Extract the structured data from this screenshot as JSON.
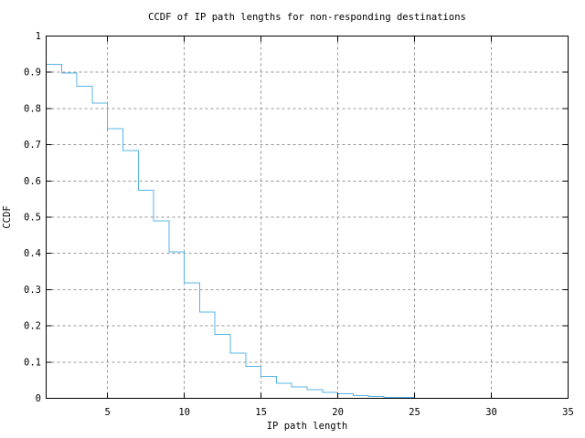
{
  "page": {
    "background": "#ffffff"
  },
  "chart_data": {
    "type": "line",
    "line_style": "steps",
    "title": "CCDF of IP path lengths for non-responding destinations",
    "xlabel": "IP path length",
    "ylabel": "CCDF",
    "xlim": [
      1,
      35
    ],
    "ylim": [
      0,
      1
    ],
    "grid": true,
    "legend": "none",
    "line_color": "#56b4e9",
    "grid_color": "#969696",
    "axis_color": "#000000",
    "xticks": [
      {
        "v": 5,
        "label": "5"
      },
      {
        "v": 10,
        "label": "10"
      },
      {
        "v": 15,
        "label": "15"
      },
      {
        "v": 20,
        "label": "20"
      },
      {
        "v": 25,
        "label": "25"
      },
      {
        "v": 30,
        "label": "30"
      },
      {
        "v": 35,
        "label": "35"
      }
    ],
    "yticks": [
      {
        "v": 0,
        "label": "0"
      },
      {
        "v": 0.1,
        "label": "0.1"
      },
      {
        "v": 0.2,
        "label": "0.2"
      },
      {
        "v": 0.3,
        "label": "0.3"
      },
      {
        "v": 0.4,
        "label": "0.4"
      },
      {
        "v": 0.5,
        "label": "0.5"
      },
      {
        "v": 0.6,
        "label": "0.6"
      },
      {
        "v": 0.7,
        "label": "0.7"
      },
      {
        "v": 0.8,
        "label": "0.8"
      },
      {
        "v": 0.9,
        "label": "0.9"
      },
      {
        "v": 1,
        "label": "1"
      }
    ],
    "points": [
      [
        1,
        0.922
      ],
      [
        2,
        0.898
      ],
      [
        3,
        0.862
      ],
      [
        4,
        0.815
      ],
      [
        5,
        0.744
      ],
      [
        6,
        0.684
      ],
      [
        7,
        0.574
      ],
      [
        8,
        0.49
      ],
      [
        9,
        0.404
      ],
      [
        10,
        0.319
      ],
      [
        11,
        0.238
      ],
      [
        12,
        0.176
      ],
      [
        13,
        0.125
      ],
      [
        14,
        0.088
      ],
      [
        15,
        0.061
      ],
      [
        16,
        0.042
      ],
      [
        17,
        0.032
      ],
      [
        18,
        0.024
      ],
      [
        19,
        0.017
      ],
      [
        20,
        0.012
      ],
      [
        21,
        0.008
      ],
      [
        22,
        0.005
      ],
      [
        23,
        0.003
      ],
      [
        24,
        0.002
      ],
      [
        25,
        0.002
      ]
    ]
  }
}
